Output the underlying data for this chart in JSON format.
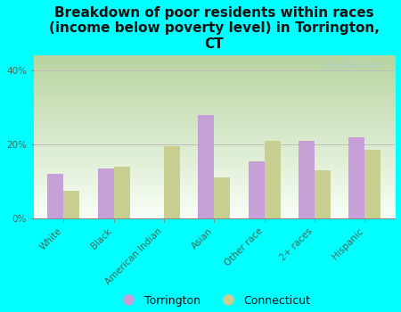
{
  "title": "Breakdown of poor residents within races\n(income below poverty level) in Torrington,\nCT",
  "categories": [
    "White",
    "Black",
    "American Indian",
    "Asian",
    "Other race",
    "2+ races",
    "Hispanic"
  ],
  "torrington": [
    12,
    13.5,
    0,
    28,
    15.5,
    21,
    22
  ],
  "connecticut": [
    7.5,
    14,
    19.5,
    11,
    21,
    13,
    18.5
  ],
  "torrington_color": "#c8a0d8",
  "connecticut_color": "#c8cf90",
  "background_outer": "#00ffff",
  "plot_bg_top": "#b8d4a0",
  "plot_bg_bottom": "#f8fff8",
  "grid_color": "#bbbbbb",
  "yticks": [
    0,
    20,
    40
  ],
  "ylim": [
    0,
    44
  ],
  "bar_width": 0.32,
  "title_fontsize": 11,
  "tick_fontsize": 7.5,
  "legend_fontsize": 9,
  "watermark": "City-Data.com",
  "watermark_color": "#b0c8d8",
  "axis_label_color": "#446655"
}
